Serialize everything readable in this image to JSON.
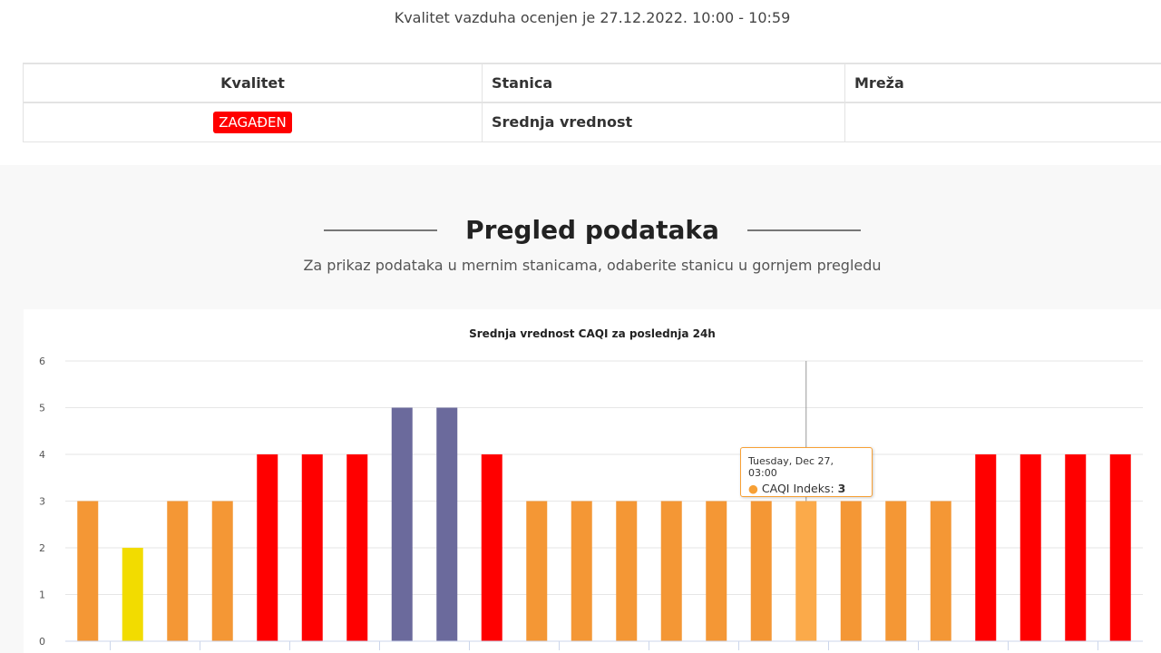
{
  "assessment": {
    "text": "Kvalitet vazduha ocenjen je 27.12.2022. 10:00 - 10:59"
  },
  "quality_table": {
    "headers": [
      "Kvalitet",
      "Stanica",
      "Mreža"
    ],
    "row": {
      "quality_badge": "ZAGAĐEN",
      "station": "Srednja vrednost",
      "network": ""
    },
    "badge_color": "#ff0000"
  },
  "overview": {
    "title": "Pregled podataka",
    "subtitle": "Za prikaz podataka u mernim stanicama, odaberite stanicu u gornjem pregledu"
  },
  "colors": {
    "orange": "#f49735",
    "yellow": "#f2dc00",
    "red": "#ff0000",
    "purple": "#6b6a9c",
    "highlight": "#fbaa4a"
  },
  "chart_data": {
    "type": "bar",
    "title": "Srednja vrednost CAQI za poslednja 24h",
    "series": [
      {
        "name": "CAQI Indeks",
        "values": [
          3,
          2,
          3,
          3,
          4,
          4,
          4,
          5,
          5,
          4,
          3,
          3,
          3,
          3,
          3,
          3,
          3,
          3,
          3,
          3,
          4,
          4,
          4,
          4
        ],
        "colors": [
          "orange",
          "yellow",
          "orange",
          "orange",
          "red",
          "red",
          "red",
          "purple",
          "purple",
          "red",
          "orange",
          "orange",
          "orange",
          "orange",
          "orange",
          "orange",
          "highlight",
          "orange",
          "orange",
          "orange",
          "red",
          "red",
          "red",
          "red"
        ]
      }
    ],
    "ylim": [
      0,
      6
    ],
    "yticks": [
      "0",
      "1",
      "2",
      "3",
      "4",
      "5",
      "6"
    ],
    "grid": true,
    "hovered_index": 16,
    "tooltip": {
      "date": "Tuesday, Dec 27, 03:00",
      "series_label": "CAQI Indeks",
      "value": "3"
    }
  }
}
